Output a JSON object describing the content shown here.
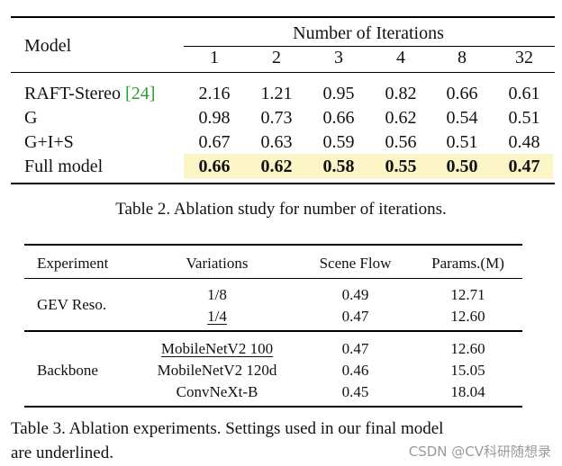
{
  "table2": {
    "header": {
      "model_label": "Model",
      "group_label": "Number of Iterations",
      "iterations": [
        "1",
        "2",
        "3",
        "4",
        "8",
        "32"
      ]
    },
    "rows": [
      {
        "model": "RAFT-Stereo ",
        "cite": "[24]",
        "values": [
          "2.16",
          "1.21",
          "0.95",
          "0.82",
          "0.66",
          "0.61"
        ]
      },
      {
        "model": "G",
        "values": [
          "0.98",
          "0.73",
          "0.66",
          "0.62",
          "0.54",
          "0.51"
        ]
      },
      {
        "model": "G+I+S",
        "values": [
          "0.67",
          "0.63",
          "0.59",
          "0.56",
          "0.51",
          "0.48"
        ]
      },
      {
        "model": "Full model",
        "values": [
          "0.66",
          "0.62",
          "0.58",
          "0.55",
          "0.50",
          "0.47"
        ],
        "highlight": "#fcf5c7"
      }
    ],
    "caption": "Table 2. Ablation study for number of iterations."
  },
  "table3": {
    "headers": [
      "Experiment",
      "Variations",
      "Scene Flow",
      "Params.(M)"
    ],
    "groups": [
      {
        "experiment": "GEV Reso.",
        "rows": [
          {
            "variation": "1/8",
            "scene_flow": "0.49",
            "params": "12.71",
            "underlined": false
          },
          {
            "variation": "1/4",
            "scene_flow": "0.47",
            "params": "12.60",
            "underlined": true
          }
        ]
      },
      {
        "experiment": "Backbone",
        "rows": [
          {
            "variation": "MobileNetV2 100",
            "scene_flow": "0.47",
            "params": "12.60",
            "underlined": true
          },
          {
            "variation": "MobileNetV2 120d",
            "scene_flow": "0.46",
            "params": "15.05",
            "underlined": false
          },
          {
            "variation": "ConvNeXt-B",
            "scene_flow": "0.45",
            "params": "18.04",
            "underlined": false
          }
        ]
      }
    ],
    "caption_line1": "Table 3.  Ablation experiments.  Settings used in our final model",
    "caption_line2": "are underlined."
  },
  "watermark": "CSDN @CV科研随想录"
}
